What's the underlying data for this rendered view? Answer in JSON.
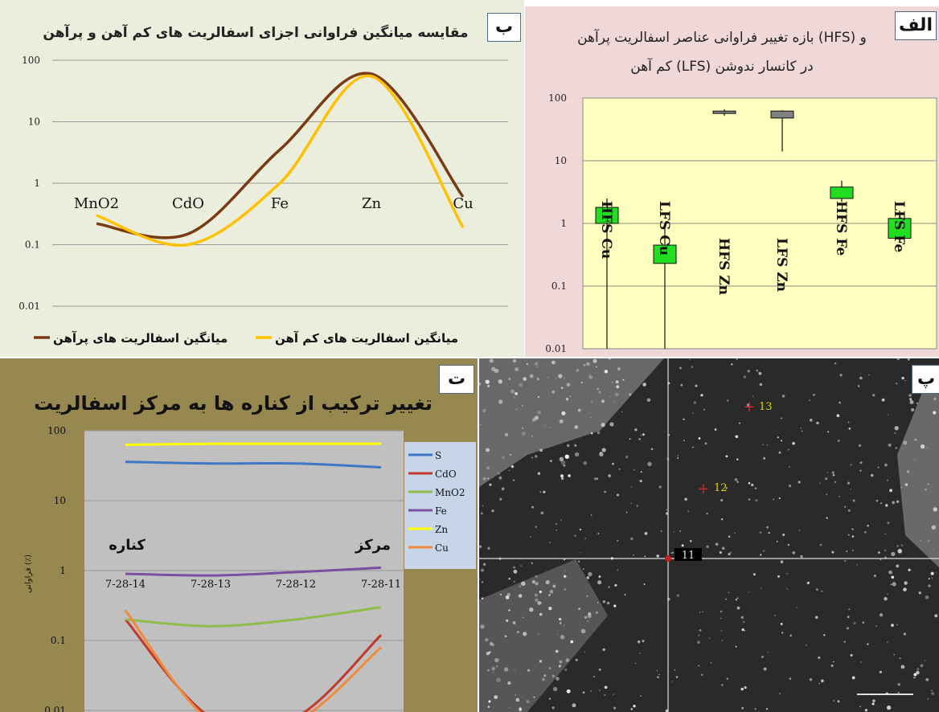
{
  "colors": {
    "hfs": "#7a3a12",
    "lfs": "#ffc000",
    "box": "#22dd22",
    "box_gray": "#808080",
    "S": "#3f77c4",
    "CdO": "#c0392b",
    "MnO2": "#8fbc4a",
    "Fe": "#7b4fa0",
    "Zn": "#ffff00",
    "Cu": "#ee8a3a"
  },
  "panel_b": {
    "tag": "ب",
    "title": "مقایسه میانگین فراوانی اجزای اسفالریت های کم آهن و پرآهن",
    "legend": [
      "میانگین اسفالریت های پرآهن",
      "میانگین اسفالریت های کم آهن"
    ]
  },
  "panel_alef": {
    "tag": "الف",
    "title_line1": "بازه تغییر فراوانی عناصر اسفالریت پرآهن (HFS) و",
    "title_line2": "کم آهن (LFS) در کانسار ندوشن"
  },
  "panel_t": {
    "tag": "ت",
    "title": "تغییر ترکیب از کناره ها به مرکز اسفالریت",
    "ylabel": "فراوانی (٪)",
    "annot_left": "کناره",
    "annot_right": "مرکز"
  },
  "panel_p": {
    "tag": "پ",
    "points": [
      "13",
      "12",
      "11"
    ]
  },
  "chart_data": [
    {
      "id": "b",
      "type": "line",
      "title": "مقایسه میانگین فراوانی اجزای اسفالریت های کم آهن و پرآهن",
      "log_scale": true,
      "ylim": [
        0.01,
        100
      ],
      "yticks": [
        "100",
        "10",
        "1",
        "0.1",
        "0.01"
      ],
      "categories": [
        "MnO2",
        "CdO",
        "Fe",
        "Zn",
        "Cu"
      ],
      "series": [
        {
          "name": "میانگین اسفالریت های پرآهن",
          "values": [
            0.22,
            0.15,
            3.5,
            60,
            0.6
          ]
        },
        {
          "name": "میانگین اسفالریت های کم آهن",
          "values": [
            0.3,
            0.1,
            1.0,
            55,
            0.19
          ]
        }
      ],
      "legend": "bottom",
      "grid": true
    },
    {
      "id": "alef",
      "type": "box",
      "title": "بازه تغییر فراوانی عناصر اسفالریت پرآهن (HFS) و کم آهن (LFS) در کانسار ندوشن",
      "log_scale": true,
      "ylim": [
        0.01,
        100
      ],
      "yticks": [
        "100",
        "10",
        "1",
        "0.1",
        "0.01"
      ],
      "categories": [
        "HFS Cu",
        "LFS Cu",
        "HFS Zn",
        "LFS Zn",
        "HFS Fe",
        "LFS Fe"
      ],
      "boxes": [
        {
          "label": "HFS Cu",
          "min": 0.01,
          "q1": 1.0,
          "q3": 1.8,
          "max": 2.5,
          "color": "box"
        },
        {
          "label": "LFS Cu",
          "min": 0.01,
          "q1": 0.23,
          "q3": 0.45,
          "max": 0.9,
          "color": "box"
        },
        {
          "label": "HFS Zn",
          "min": 52,
          "q1": 57,
          "q3": 62,
          "max": 66,
          "color": "box_gray"
        },
        {
          "label": "LFS Zn",
          "min": 14,
          "q1": 48,
          "q3": 62,
          "max": 64,
          "color": "box_gray"
        },
        {
          "label": "HFS Fe",
          "min": 2.2,
          "q1": 2.5,
          "q3": 3.8,
          "max": 4.8,
          "color": "box"
        },
        {
          "label": "LFS Fe",
          "min": 0.5,
          "q1": 0.58,
          "q3": 1.2,
          "max": 1.6,
          "color": "box"
        }
      ]
    },
    {
      "id": "t",
      "type": "line",
      "title": "تغییر ترکیب از کناره ها به مرکز اسفالریت",
      "ylabel": "فراوانی (٪)",
      "log_scale": true,
      "ylim": [
        0.01,
        100
      ],
      "yticks": [
        "100",
        "10",
        "1",
        "0.1",
        "0.01"
      ],
      "categories": [
        "7-28-14",
        "7-28-13",
        "7-28-12",
        "7-28-11"
      ],
      "series": [
        {
          "name": "S",
          "values": [
            36,
            34,
            34,
            30
          ]
        },
        {
          "name": "CdO",
          "values": [
            0.2,
            0.008,
            0.008,
            0.12
          ]
        },
        {
          "name": "MnO2",
          "values": [
            0.2,
            0.16,
            0.2,
            0.3
          ]
        },
        {
          "name": "Fe",
          "values": [
            0.9,
            0.85,
            0.95,
            1.1
          ]
        },
        {
          "name": "Zn",
          "values": [
            63,
            65,
            65,
            65
          ]
        },
        {
          "name": "Cu",
          "values": [
            0.27,
            0.007,
            0.007,
            0.08
          ]
        }
      ],
      "legend": "right",
      "grid": true
    }
  ]
}
